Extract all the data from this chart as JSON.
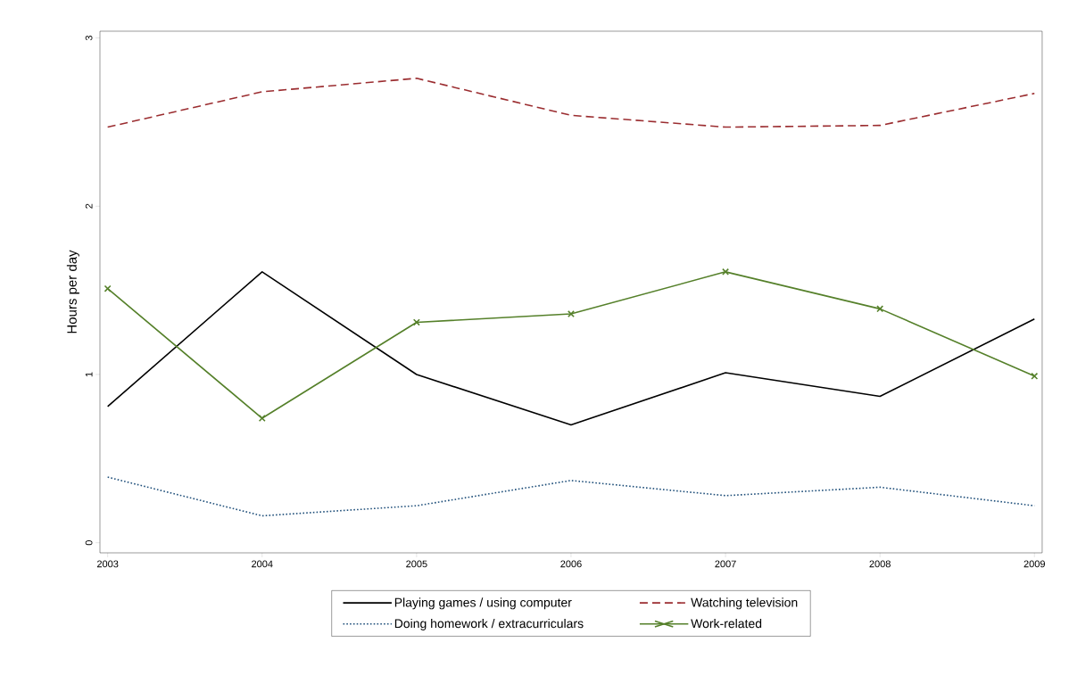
{
  "chart_data": {
    "type": "line",
    "ylabel": "Hours per day",
    "x": [
      2003,
      2004,
      2005,
      2006,
      2007,
      2008,
      2009
    ],
    "xlim": [
      2002.95,
      2009.05
    ],
    "ylim": [
      -0.06,
      3.04
    ],
    "xticks": [
      2003,
      2004,
      2005,
      2006,
      2007,
      2008,
      2009
    ],
    "yticks": [
      0,
      1,
      2,
      3
    ],
    "grid": false,
    "legend": "bottom",
    "series": [
      {
        "name": "Playing games / using computer",
        "color": "#000000",
        "line_style": "solid",
        "marker": "none",
        "values": [
          0.81,
          1.61,
          1.0,
          0.7,
          1.01,
          0.87,
          1.33
        ]
      },
      {
        "name": "Watching television",
        "color": "#9b2d30",
        "line_style": "dashed",
        "marker": "none",
        "values": [
          2.47,
          2.68,
          2.76,
          2.54,
          2.47,
          2.48,
          2.67
        ]
      },
      {
        "name": "Doing homework / extracurriculars",
        "color": "#1f4f7a",
        "line_style": "dotted",
        "marker": "none",
        "values": [
          0.39,
          0.16,
          0.22,
          0.37,
          0.28,
          0.33,
          0.22
        ]
      },
      {
        "name": "Work-related",
        "color": "#55802a",
        "line_style": "solid",
        "marker": "cross",
        "values": [
          1.51,
          0.74,
          1.31,
          1.36,
          1.61,
          1.39,
          0.99
        ]
      }
    ]
  }
}
